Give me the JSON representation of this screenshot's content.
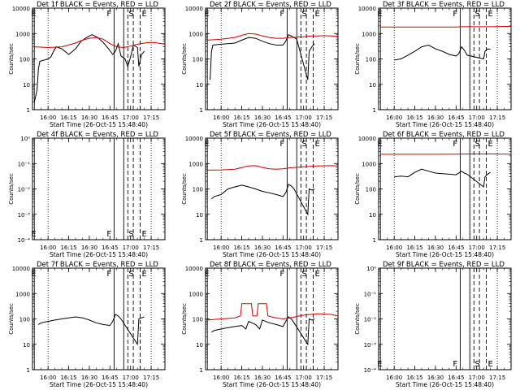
{
  "figure": {
    "ylabel": "Counts/sec",
    "xlabel": "Start Time (26-Oct-15 15:48:40)",
    "time_ticks": [
      "16:00",
      "16:15",
      "16:30",
      "16:45",
      "17:00",
      "17:15"
    ],
    "ytick_labels_log": [
      "1",
      "10",
      "100",
      "1000",
      "10000"
    ],
    "ytick_labels_empty": [
      "10⁰",
      "10⁻¹",
      "10⁻²",
      "10⁻³",
      "10⁻⁴"
    ],
    "marker_labels": {
      "E_left": "E",
      "F": "F",
      "S": "S",
      "E_right": "E",
      "M": "M"
    },
    "colors": {
      "events": "#000000",
      "lld": "#d00000"
    }
  },
  "chart_data": [
    {
      "type": "line",
      "title": "Det 1f BLACK = Events, RED = LLD",
      "yscale": "log",
      "ylim": [
        1,
        10000
      ],
      "series": [
        {
          "key": "events",
          "x": [
            "15:50",
            "15:52",
            "15:53",
            "15:54",
            "16:00",
            "16:02",
            "16:04",
            "16:06",
            "16:10",
            "16:15",
            "16:20",
            "16:24",
            "16:28",
            "16:32",
            "16:36",
            "16:40",
            "16:44",
            "16:47",
            "16:49",
            "16:51",
            "16:53",
            "16:56",
            "16:58",
            "17:00",
            "17:02",
            "17:05",
            "17:06",
            "17:08",
            "17:10"
          ],
          "y": [
            2,
            6,
            40,
            80,
            100,
            120,
            200,
            300,
            250,
            150,
            250,
            500,
            700,
            900,
            700,
            450,
            250,
            150,
            200,
            400,
            130,
            100,
            50,
            120,
            350,
            280,
            50,
            150,
            200
          ]
        },
        {
          "key": "lld",
          "x": [
            "15:50",
            "16:00",
            "16:10",
            "16:20",
            "16:25",
            "16:30",
            "16:35",
            "16:40",
            "16:45",
            "16:50",
            "16:55",
            "17:00",
            "17:05",
            "17:10",
            "17:15",
            "17:20",
            "17:25"
          ],
          "y": [
            300,
            280,
            300,
            420,
            550,
            650,
            700,
            600,
            400,
            300,
            280,
            320,
            380,
            420,
            450,
            420,
            380
          ]
        }
      ]
    },
    {
      "type": "line",
      "title": "Det 2f BLACK = Events, RED = LLD",
      "yscale": "log",
      "ylim": [
        1,
        10000
      ],
      "series": [
        {
          "key": "events",
          "x": [
            "15:52",
            "15:53",
            "15:54",
            "16:00",
            "16:05",
            "16:10",
            "16:15",
            "16:20",
            "16:25",
            "16:30",
            "16:35",
            "16:40",
            "16:45",
            "16:47",
            "16:49",
            "16:51",
            "16:53",
            "16:55",
            "17:03",
            "17:04",
            "17:06",
            "17:08"
          ],
          "y": [
            15,
            200,
            350,
            380,
            400,
            420,
            550,
            700,
            650,
            500,
            400,
            350,
            350,
            500,
            900,
            800,
            700,
            600,
            15,
            200,
            300,
            400
          ]
        },
        {
          "key": "lld",
          "x": [
            "15:50",
            "16:00",
            "16:10",
            "16:15",
            "16:20",
            "16:25",
            "16:30",
            "16:35",
            "16:40",
            "16:45",
            "16:50",
            "16:55",
            "17:00",
            "17:05",
            "17:10",
            "17:15",
            "17:20",
            "17:25"
          ],
          "y": [
            550,
            600,
            700,
            850,
            1000,
            950,
            800,
            700,
            650,
            650,
            700,
            720,
            750,
            800,
            800,
            820,
            800,
            780
          ]
        }
      ]
    },
    {
      "type": "line",
      "title": "Det 3f BLACK = Events, RED = LLD",
      "yscale": "log",
      "ylim": [
        1,
        10000
      ],
      "series": [
        {
          "key": "events",
          "x": [
            "16:00",
            "16:05",
            "16:10",
            "16:15",
            "16:20",
            "16:25",
            "16:30",
            "16:35",
            "16:40",
            "16:45",
            "16:47",
            "16:49",
            "16:51",
            "16:53",
            "17:05",
            "17:06",
            "17:08",
            "17:10"
          ],
          "y": [
            90,
            100,
            140,
            200,
            300,
            350,
            250,
            200,
            150,
            130,
            160,
            300,
            220,
            140,
            100,
            200,
            250,
            240
          ]
        },
        {
          "key": "lld",
          "x": [
            "15:50",
            "16:10",
            "16:30",
            "16:45",
            "16:50",
            "17:00",
            "17:10",
            "17:20",
            "17:25"
          ],
          "y": [
            1800,
            1800,
            1800,
            1800,
            1850,
            1850,
            1850,
            1900,
            1900
          ]
        }
      ]
    },
    {
      "type": "line",
      "title": "Det 4f BLACK = Events, RED = LLD",
      "yscale": "log",
      "ylim": [
        0.0001,
        1
      ],
      "series": []
    },
    {
      "type": "line",
      "title": "Det 5f BLACK = Events, RED = LLD",
      "yscale": "log",
      "ylim": [
        1,
        10000
      ],
      "series": [
        {
          "key": "events",
          "x": [
            "15:53",
            "15:55",
            "16:00",
            "16:05",
            "16:10",
            "16:15",
            "16:20",
            "16:25",
            "16:30",
            "16:35",
            "16:40",
            "16:45",
            "16:47",
            "16:49",
            "16:51",
            "16:53",
            "17:03",
            "17:04",
            "17:06",
            "17:08"
          ],
          "y": [
            40,
            50,
            60,
            100,
            120,
            140,
            120,
            100,
            80,
            70,
            60,
            50,
            70,
            150,
            130,
            100,
            10,
            100,
            90,
            100
          ]
        },
        {
          "key": "lld",
          "x": [
            "15:50",
            "16:00",
            "16:10",
            "16:20",
            "16:25",
            "16:30",
            "16:35",
            "16:40",
            "16:45",
            "16:50",
            "17:00",
            "17:10",
            "17:20",
            "17:25"
          ],
          "y": [
            550,
            560,
            600,
            800,
            820,
            700,
            620,
            600,
            620,
            680,
            750,
            800,
            820,
            800
          ]
        }
      ]
    },
    {
      "type": "line",
      "title": "Det 6f BLACK = Events, RED = LLD",
      "yscale": "log",
      "ylim": [
        1,
        10000
      ],
      "series": [
        {
          "key": "events",
          "x": [
            "16:00",
            "16:05",
            "16:10",
            "16:15",
            "16:20",
            "16:25",
            "16:30",
            "16:35",
            "16:40",
            "16:45",
            "16:49",
            "16:51",
            "16:53",
            "17:05",
            "17:06",
            "17:08",
            "17:10"
          ],
          "y": [
            300,
            320,
            300,
            450,
            600,
            500,
            420,
            400,
            380,
            360,
            500,
            420,
            380,
            120,
            300,
            380,
            450
          ]
        },
        {
          "key": "lld",
          "x": [
            "15:50",
            "16:10",
            "16:30",
            "16:45",
            "17:00",
            "17:10",
            "17:20",
            "17:25"
          ],
          "y": [
            2300,
            2300,
            2300,
            2350,
            2400,
            2400,
            2350,
            2350
          ]
        }
      ]
    },
    {
      "type": "line",
      "title": "Det 7f BLACK = Events, RED = LLD",
      "yscale": "log",
      "ylim": [
        1,
        10000
      ],
      "series": [
        {
          "key": "events",
          "x": [
            "15:53",
            "15:55",
            "16:00",
            "16:05",
            "16:10",
            "16:15",
            "16:20",
            "16:25",
            "16:30",
            "16:35",
            "16:40",
            "16:45",
            "16:47",
            "16:49",
            "16:51",
            "16:53",
            "17:05",
            "17:06",
            "17:08",
            "17:10"
          ],
          "y": [
            60,
            70,
            80,
            90,
            100,
            110,
            120,
            110,
            90,
            70,
            60,
            55,
            80,
            150,
            130,
            100,
            10,
            100,
            110,
            120
          ]
        }
      ]
    },
    {
      "type": "line",
      "title": "Det 8f BLACK = Events, RED = LLD",
      "yscale": "log",
      "ylim": [
        1,
        10000
      ],
      "series": [
        {
          "key": "events",
          "x": [
            "15:53",
            "15:55",
            "16:00",
            "16:05",
            "16:10",
            "16:15",
            "16:18",
            "16:20",
            "16:25",
            "16:28",
            "16:30",
            "16:35",
            "16:40",
            "16:45",
            "16:47",
            "16:49",
            "16:51",
            "16:53",
            "17:03",
            "17:04",
            "17:06",
            "17:08"
          ],
          "y": [
            30,
            35,
            40,
            45,
            50,
            55,
            40,
            80,
            60,
            40,
            90,
            70,
            60,
            50,
            80,
            120,
            100,
            70,
            10,
            100,
            90,
            100
          ]
        },
        {
          "key": "lld",
          "x": [
            "15:50",
            "16:00",
            "16:10",
            "16:14",
            "16:15",
            "16:22",
            "16:23",
            "16:26",
            "16:27",
            "16:33",
            "16:34",
            "16:40",
            "16:45",
            "16:50",
            "17:00",
            "17:10",
            "17:20",
            "17:25"
          ],
          "y": [
            90,
            100,
            110,
            130,
            400,
            400,
            130,
            130,
            400,
            400,
            130,
            110,
            100,
            110,
            140,
            160,
            150,
            130
          ]
        }
      ]
    },
    {
      "type": "line",
      "title": "Det 9f BLACK = Events, RED = LLD",
      "yscale": "log",
      "ylim": [
        0.0001,
        1
      ],
      "series": []
    }
  ]
}
